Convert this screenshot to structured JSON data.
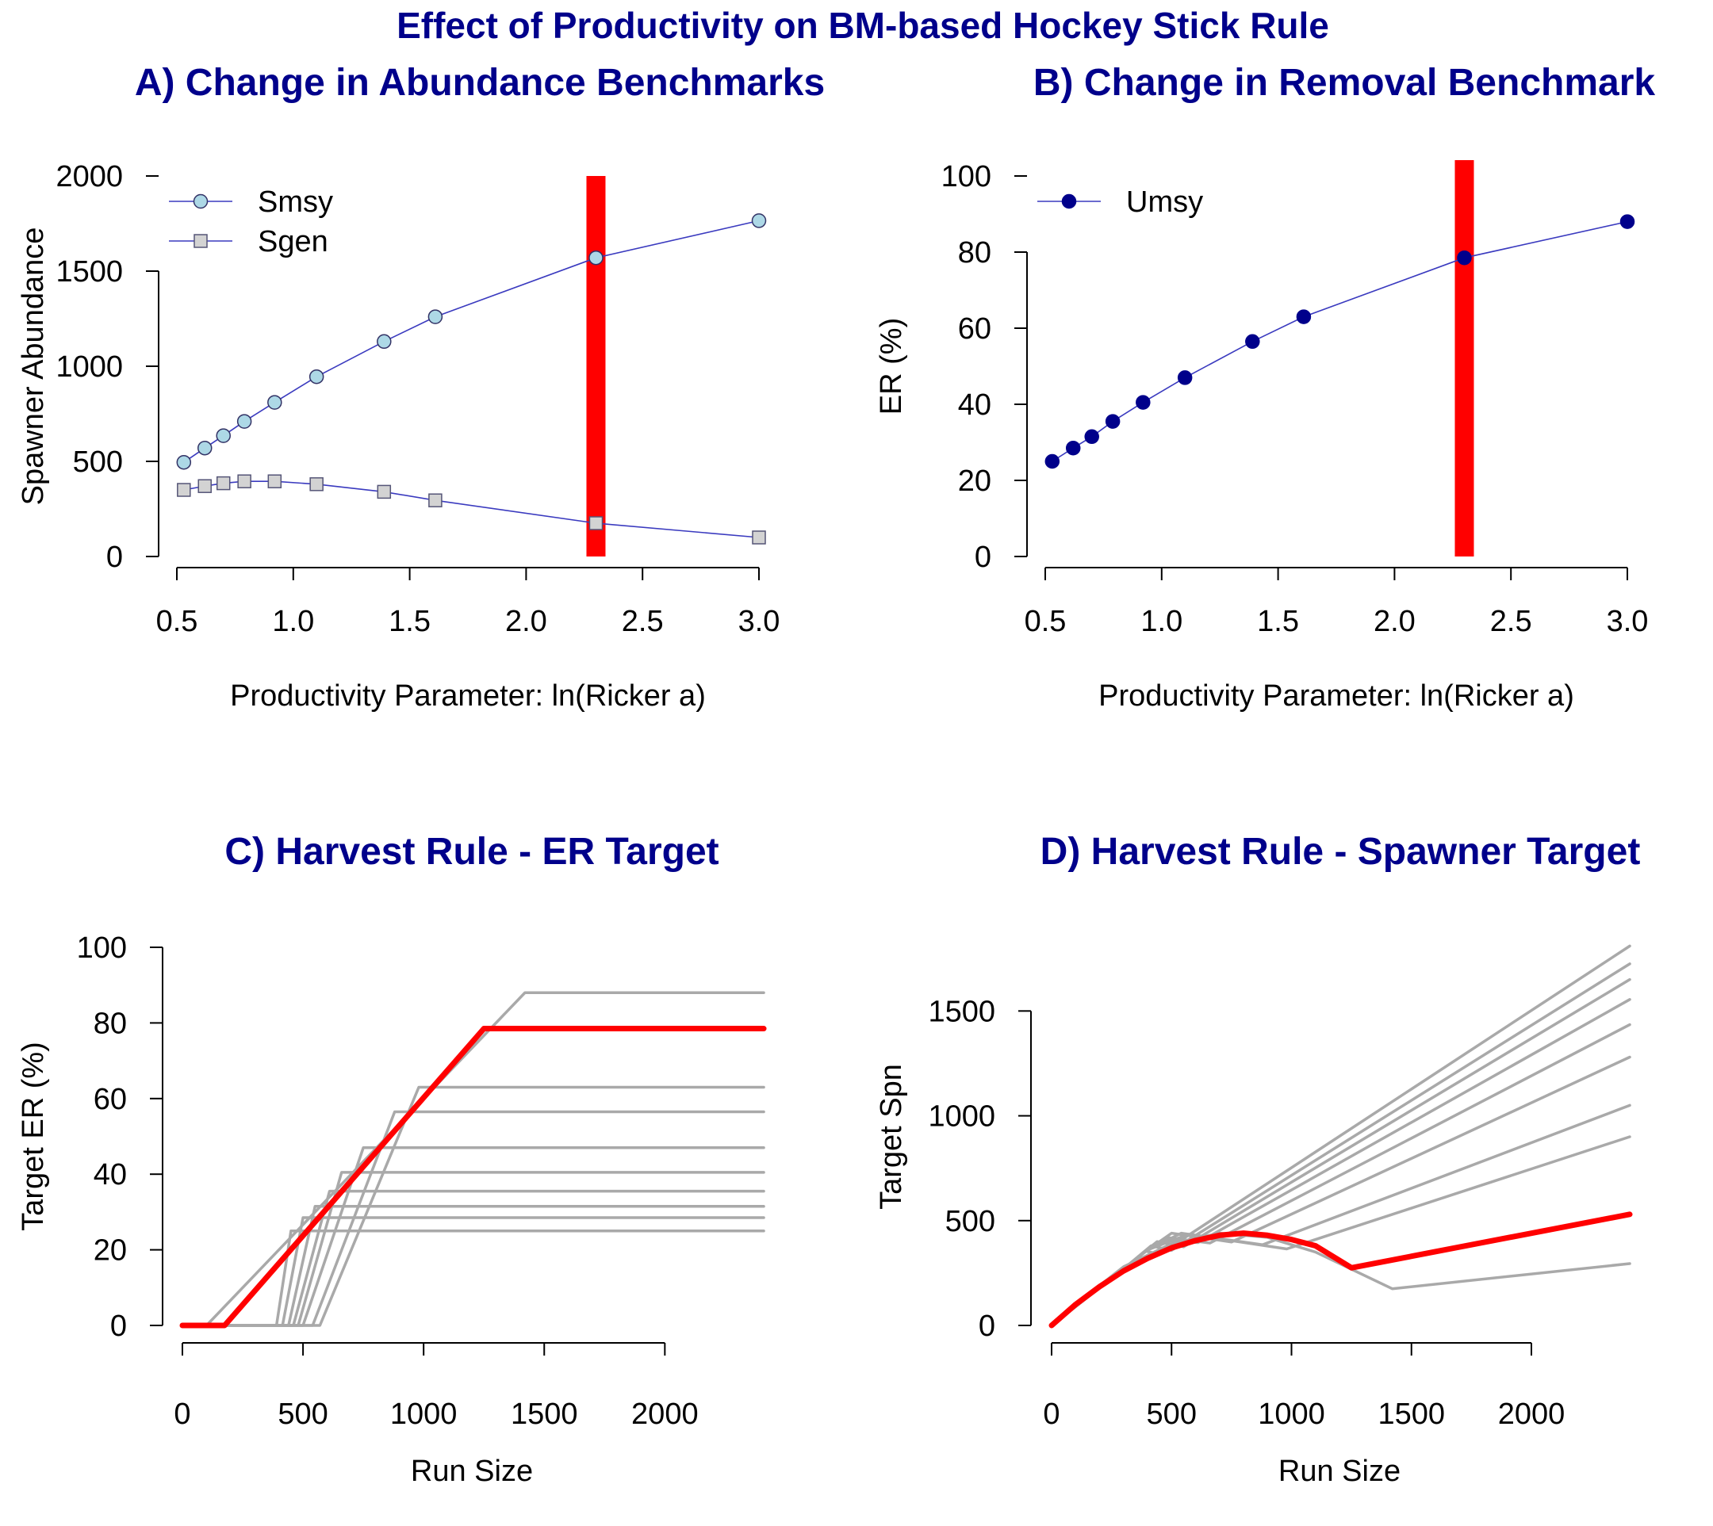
{
  "title": "Effect of Productivity on BM-based Hockey Stick Rule",
  "colors": {
    "title": "#00008B",
    "highlight": "#FF0000",
    "smsy": "#ADD8E6",
    "sgen": "#D3D3D3",
    "umsy": "#00008B",
    "line": "#3A3ABF",
    "grey": "#A9A9A9"
  },
  "chart_data": [
    {
      "type": "line",
      "title": "A) Change in Abundance Benchmarks",
      "xlabel": "Productivity Parameter: ln(Ricker a)",
      "ylabel": "Spawner Abundance",
      "xlim": [
        0.5,
        3.0
      ],
      "ylim": [
        0,
        2000
      ],
      "xticks": [
        0.5,
        1.0,
        1.5,
        2.0,
        2.5,
        3.0
      ],
      "xtick_labels": [
        "0.5",
        "1.0",
        "1.5",
        "2.0",
        "2.5",
        "3.0"
      ],
      "yticks": [
        0,
        500,
        1000,
        1500,
        2000
      ],
      "ytick_labels": [
        "0",
        "500",
        "1000",
        "1500",
        "2000"
      ],
      "highlight_x": 2.3,
      "legend": "top-left",
      "x": [
        0.53,
        0.62,
        0.7,
        0.79,
        0.92,
        1.1,
        1.39,
        1.61,
        2.3,
        3.0
      ],
      "series": [
        {
          "name": "Smsy",
          "marker": "circle",
          "values": [
            495,
            570,
            635,
            710,
            810,
            945,
            1130,
            1260,
            1570,
            1765
          ]
        },
        {
          "name": "Sgen",
          "marker": "square",
          "values": [
            350,
            370,
            385,
            395,
            395,
            380,
            340,
            295,
            175,
            100
          ]
        }
      ]
    },
    {
      "type": "line",
      "title": "B) Change in Removal Benchmark",
      "xlabel": "Productivity Parameter: ln(Ricker a)",
      "ylabel": "ER (%)",
      "xlim": [
        0.5,
        3.0
      ],
      "ylim": [
        0,
        100
      ],
      "xticks": [
        0.5,
        1.0,
        1.5,
        2.0,
        2.5,
        3.0
      ],
      "xtick_labels": [
        "0.5",
        "1.0",
        "1.5",
        "2.0",
        "2.5",
        "3.0"
      ],
      "yticks": [
        0,
        20,
        40,
        60,
        80,
        100
      ],
      "ytick_labels": [
        "0",
        "20",
        "40",
        "60",
        "80",
        "100"
      ],
      "highlight_x": 2.3,
      "legend": "top-left",
      "x": [
        0.53,
        0.62,
        0.7,
        0.79,
        0.92,
        1.1,
        1.39,
        1.61,
        2.3,
        3.0
      ],
      "series": [
        {
          "name": "Umsy",
          "marker": "circle",
          "values": [
            25,
            28.5,
            31.5,
            35.5,
            40.5,
            47,
            56.5,
            63,
            78.5,
            88
          ]
        }
      ]
    },
    {
      "type": "line",
      "title": "C) Harvest Rule - ER Target",
      "xlabel": "Run Size",
      "ylabel": "Target ER (%)",
      "xlim": [
        0,
        2400
      ],
      "ylim": [
        0,
        100
      ],
      "xticks": [
        0,
        500,
        1000,
        1500,
        2000
      ],
      "xtick_labels": [
        "0",
        "500",
        "1000",
        "1500",
        "2000"
      ],
      "yticks": [
        0,
        20,
        40,
        60,
        80,
        100
      ],
      "ytick_labels": [
        "0",
        "20",
        "40",
        "60",
        "80",
        "100"
      ],
      "series": [
        {
          "points": [
            [
              0,
              0
            ],
            [
              350,
              0
            ],
            [
              390,
              0
            ],
            [
              450,
              25
            ],
            [
              2410,
              25
            ]
          ]
        },
        {
          "points": [
            [
              0,
              0
            ],
            [
              365,
              0
            ],
            [
              415,
              0
            ],
            [
              500,
              28.5
            ],
            [
              2410,
              28.5
            ]
          ]
        },
        {
          "points": [
            [
              0,
              0
            ],
            [
              380,
              0
            ],
            [
              440,
              0
            ],
            [
              550,
              31.5
            ],
            [
              2410,
              31.5
            ]
          ]
        },
        {
          "points": [
            [
              0,
              0
            ],
            [
              390,
              0
            ],
            [
              460,
              0
            ],
            [
              610,
              35.5
            ],
            [
              2410,
              35.5
            ]
          ]
        },
        {
          "points": [
            [
              0,
              0
            ],
            [
              395,
              0
            ],
            [
              480,
              0
            ],
            [
              660,
              40.5
            ],
            [
              2410,
              40.5
            ]
          ]
        },
        {
          "points": [
            [
              0,
              0
            ],
            [
              380,
              0
            ],
            [
              500,
              0
            ],
            [
              750,
              47
            ],
            [
              2410,
              47
            ]
          ]
        },
        {
          "points": [
            [
              0,
              0
            ],
            [
              340,
              0
            ],
            [
              540,
              0
            ],
            [
              880,
              56.5
            ],
            [
              2410,
              56.5
            ]
          ]
        },
        {
          "points": [
            [
              0,
              0
            ],
            [
              295,
              0
            ],
            [
              570,
              0
            ],
            [
              980,
              63
            ],
            [
              2410,
              63
            ]
          ]
        },
        {
          "points": [
            [
              0,
              0
            ],
            [
              100,
              0
            ],
            [
              1420,
              88
            ],
            [
              2410,
              88
            ]
          ]
        },
        {
          "highlight": true,
          "points": [
            [
              0,
              0
            ],
            [
              175,
              0
            ],
            [
              1250,
              78.5
            ],
            [
              2410,
              78.5
            ]
          ]
        }
      ]
    },
    {
      "type": "line",
      "title": "D) Harvest Rule - Spawner Target",
      "xlabel": "Run Size",
      "ylabel": "Target Spn",
      "xlim": [
        0,
        2400
      ],
      "ylim": [
        0,
        1800
      ],
      "xticks": [
        0,
        500,
        1000,
        1500,
        2000
      ],
      "xtick_labels": [
        "0",
        "500",
        "1000",
        "1500",
        "2000"
      ],
      "yticks": [
        0,
        500,
        1000,
        1500
      ],
      "ytick_labels": [
        "0",
        "500",
        "1000",
        "1500"
      ],
      "series": [
        {
          "points": [
            [
              0,
              0
            ],
            [
              100,
              90
            ],
            [
              200,
              180
            ],
            [
              300,
              270
            ],
            [
              390,
              355
            ],
            [
              450,
              340
            ],
            [
              2410,
              1810
            ]
          ]
        },
        {
          "points": [
            [
              0,
              0
            ],
            [
              100,
              90
            ],
            [
              200,
              180
            ],
            [
              300,
              270
            ],
            [
              415,
              380
            ],
            [
              500,
              358
            ],
            [
              2410,
              1725
            ]
          ]
        },
        {
          "points": [
            [
              0,
              0
            ],
            [
              100,
              90
            ],
            [
              200,
              180
            ],
            [
              300,
              270
            ],
            [
              440,
              400
            ],
            [
              550,
              375
            ],
            [
              2410,
              1650
            ]
          ]
        },
        {
          "points": [
            [
              0,
              0
            ],
            [
              100,
              90
            ],
            [
              200,
              180
            ],
            [
              300,
              270
            ],
            [
              400,
              360
            ],
            [
              460,
              405
            ],
            [
              610,
              395
            ],
            [
              2410,
              1555
            ]
          ]
        },
        {
          "points": [
            [
              0,
              0
            ],
            [
              100,
              90
            ],
            [
              200,
              180
            ],
            [
              300,
              270
            ],
            [
              400,
              360
            ],
            [
              480,
              420
            ],
            [
              660,
              393
            ],
            [
              2410,
              1435
            ]
          ]
        },
        {
          "points": [
            [
              0,
              0
            ],
            [
              100,
              90
            ],
            [
              200,
              180
            ],
            [
              300,
              270
            ],
            [
              400,
              360
            ],
            [
              500,
              440
            ],
            [
              750,
              398
            ],
            [
              2410,
              1280
            ]
          ]
        },
        {
          "points": [
            [
              0,
              0
            ],
            [
              100,
              90
            ],
            [
              200,
              180
            ],
            [
              300,
              270
            ],
            [
              400,
              360
            ],
            [
              540,
              440
            ],
            [
              880,
              385
            ],
            [
              2410,
              1050
            ]
          ]
        },
        {
          "points": [
            [
              0,
              0
            ],
            [
              100,
              90
            ],
            [
              200,
              180
            ],
            [
              300,
              270
            ],
            [
              400,
              360
            ],
            [
              570,
              435
            ],
            [
              980,
              365
            ],
            [
              2410,
              900
            ]
          ]
        },
        {
          "points": [
            [
              0,
              0
            ],
            [
              100,
              100
            ],
            [
              300,
              280
            ],
            [
              500,
              390
            ],
            [
              700,
              440
            ],
            [
              900,
              420
            ],
            [
              1100,
              350
            ],
            [
              1420,
              175
            ],
            [
              2410,
              295
            ]
          ]
        },
        {
          "highlight": true,
          "points": [
            [
              0,
              0
            ],
            [
              100,
              100
            ],
            [
              200,
              185
            ],
            [
              300,
              260
            ],
            [
              400,
              320
            ],
            [
              500,
              370
            ],
            [
              600,
              405
            ],
            [
              700,
              430
            ],
            [
              800,
              440
            ],
            [
              900,
              430
            ],
            [
              1000,
              410
            ],
            [
              1100,
              380
            ],
            [
              1250,
              275
            ],
            [
              2410,
              530
            ]
          ]
        }
      ]
    }
  ]
}
